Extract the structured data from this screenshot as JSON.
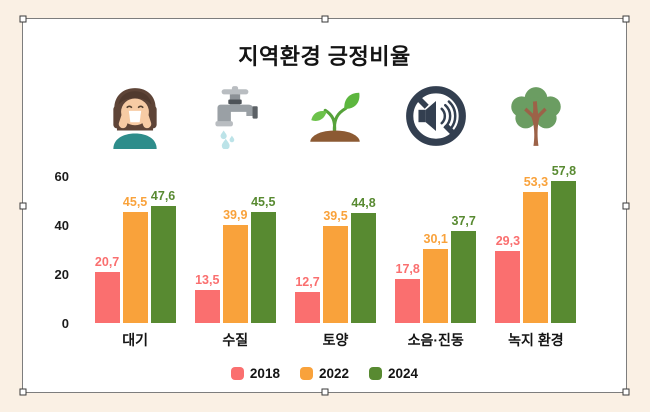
{
  "canvas": {
    "background_color": "#FAF0E4",
    "card_color": "#FFFFFF"
  },
  "selection": {
    "handle_count": 8
  },
  "chart_data": {
    "type": "bar",
    "title": "지역환경 긍정비율",
    "categories": [
      "대기",
      "수질",
      "토양",
      "소음·진동",
      "녹지 환경"
    ],
    "category_icons": [
      "woman-mask-icon",
      "faucet-icon",
      "sprout-icon",
      "mute-speaker-icon",
      "tree-icon"
    ],
    "series": [
      {
        "name": "2018",
        "color": "#FA6F6F",
        "values": [
          20.7,
          13.5,
          12.7,
          17.8,
          29.3
        ],
        "labels": [
          "20,7",
          "13,5",
          "12,7",
          "17,8",
          "29,3"
        ]
      },
      {
        "name": "2022",
        "color": "#F9A23B",
        "values": [
          45.5,
          39.9,
          39.5,
          30.1,
          53.3
        ],
        "labels": [
          "45,5",
          "39,9",
          "39,5",
          "30,1",
          "53,3"
        ]
      },
      {
        "name": "2024",
        "color": "#588A31",
        "values": [
          47.6,
          45.5,
          44.8,
          37.7,
          57.8
        ],
        "labels": [
          "47,6",
          "45,5",
          "44,8",
          "37,7",
          "57,8"
        ]
      }
    ],
    "y_ticks": [
      0,
      20,
      40,
      60
    ],
    "ylim": [
      0,
      60
    ],
    "grid": false,
    "legend_position": "bottom",
    "xlabel": "",
    "ylabel": ""
  }
}
